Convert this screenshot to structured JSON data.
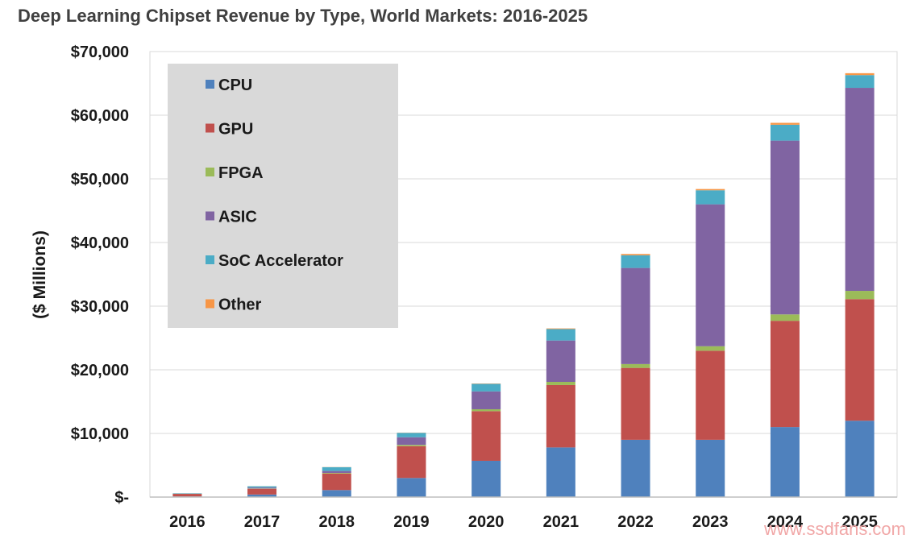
{
  "chart_data": {
    "type": "bar",
    "stacked": true,
    "title": "Deep Learning Chipset Revenue by Type, World Markets: 2016-2025",
    "ylabel": "($ Millions)",
    "xlabel": "",
    "ylim": [
      0,
      70000
    ],
    "y_ticks": [
      0,
      10000,
      20000,
      30000,
      40000,
      50000,
      60000,
      70000
    ],
    "y_tick_labels": [
      "$-",
      "$10,000",
      "$20,000",
      "$30,000",
      "$40,000",
      "$50,000",
      "$60,000",
      "$70,000"
    ],
    "grid": true,
    "legend_position": "top-left",
    "categories": [
      "2016",
      "2017",
      "2018",
      "2019",
      "2020",
      "2021",
      "2022",
      "2023",
      "2024",
      "2025"
    ],
    "series": [
      {
        "name": "CPU",
        "color": "#4f81bd",
        "values": [
          100,
          400,
          1100,
          3000,
          5700,
          7800,
          9000,
          9000,
          11000,
          12000
        ]
      },
      {
        "name": "GPU",
        "color": "#c0504d",
        "values": [
          400,
          900,
          2600,
          5000,
          7800,
          9800,
          11300,
          14000,
          16700,
          19100
        ]
      },
      {
        "name": "FPGA",
        "color": "#9bbb59",
        "values": [
          20,
          50,
          100,
          200,
          300,
          500,
          600,
          700,
          1000,
          1300
        ]
      },
      {
        "name": "ASIC",
        "color": "#8064a2",
        "values": [
          20,
          150,
          300,
          1200,
          2800,
          6500,
          15100,
          22300,
          27300,
          31900
        ]
      },
      {
        "name": "SoC Accelerator",
        "color": "#4bacc6",
        "values": [
          60,
          200,
          600,
          700,
          1200,
          1800,
          2000,
          2200,
          2500,
          2000
        ]
      },
      {
        "name": "Other",
        "color": "#f79646",
        "values": [
          5,
          10,
          20,
          30,
          50,
          100,
          200,
          200,
          300,
          300
        ]
      }
    ]
  },
  "watermark": "www.ssdfans.com"
}
